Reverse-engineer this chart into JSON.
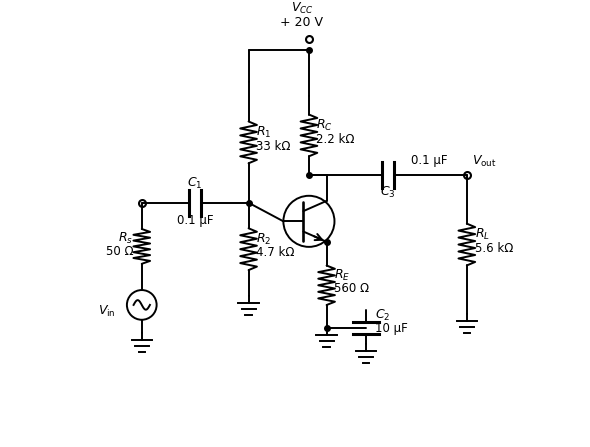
{
  "bg_color": "#ffffff",
  "line_color": "#000000",
  "figsize": [
    5.9,
    4.47
  ],
  "dpi": 100,
  "xlim": [
    0,
    11
  ],
  "ylim": [
    0,
    9
  ],
  "components": {
    "VCC_label": "$V_{CC}$",
    "VCC_value": "+ 20 V",
    "R1_label": "$R_1$",
    "R1_value": "33 kΩ",
    "R2_label": "$R_2$",
    "R2_value": "4.7 kΩ",
    "RC_label": "$R_C$",
    "RC_value": "2.2 kΩ",
    "RE_label": "$R_E$",
    "RE_value": "560 Ω",
    "RL_label": "$R_L$",
    "RL_value": "5.6 kΩ",
    "RS_label": "$R_s$",
    "RS_value": "50 Ω",
    "C1_label": "$C_1$",
    "C1_value": "0.1 μF",
    "C2_label": "$C_2$",
    "C2_value": "10 μF",
    "C3_label": "$C_3$",
    "C3_value": "0.1 μF",
    "Vin_label": "$V_{\\mathrm{in}}$",
    "Vout_label": "$V_{\\mathrm{out}}$"
  }
}
